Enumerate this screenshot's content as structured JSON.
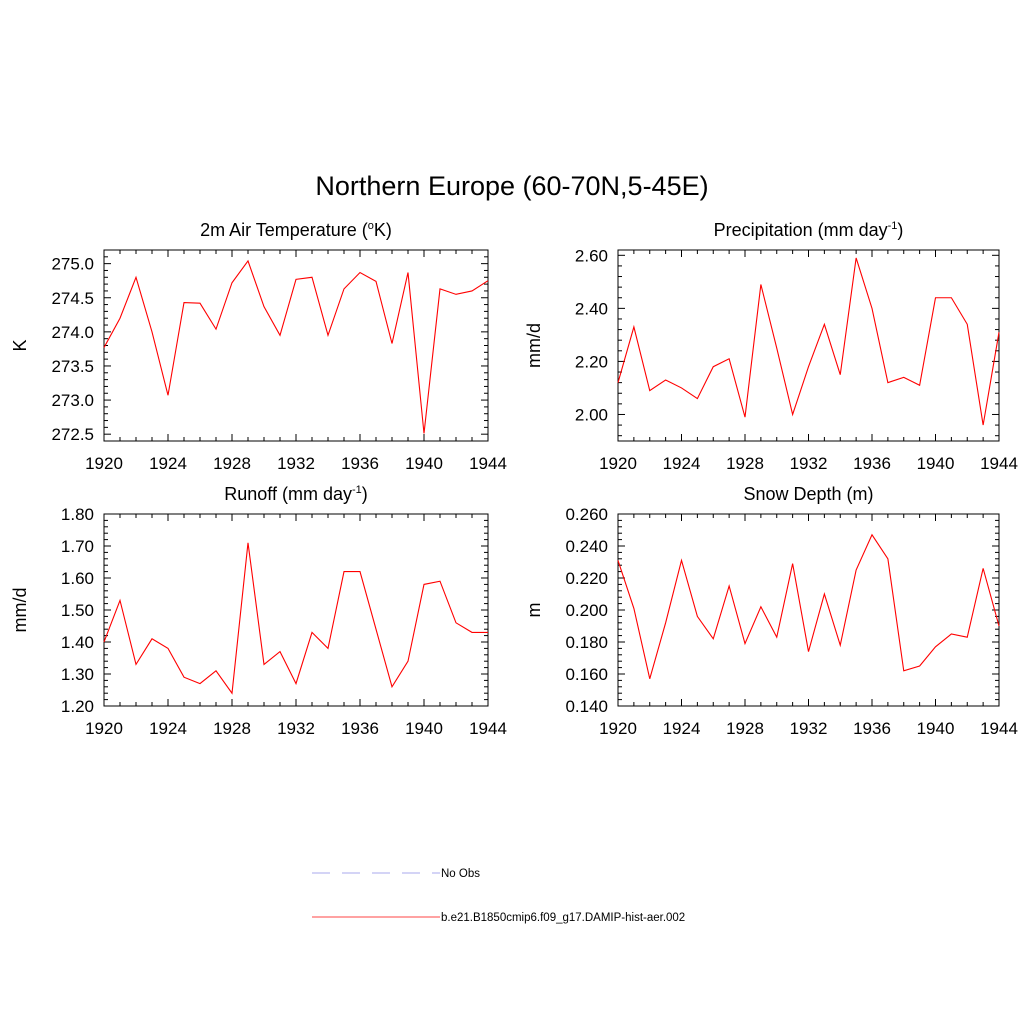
{
  "page": {
    "title": "Northern Europe (60-70N,5-45E)"
  },
  "chart_data": [
    {
      "type": "line",
      "title": "2m Air Temperature (",
      "title_sup": "o",
      "title_after": "K)",
      "ylabel": "K",
      "xlim": [
        1920,
        1944
      ],
      "ylim": [
        272.4,
        275.2
      ],
      "x_ticks": [
        "1920",
        "1924",
        "1928",
        "1932",
        "1936",
        "1940",
        "1944"
      ],
      "y_ticks": [
        "272.5",
        "273.0",
        "273.5",
        "274.0",
        "274.5",
        "275.0"
      ],
      "series": [
        {
          "color": "#ff0000",
          "x": [
            1920,
            1921,
            1922,
            1923,
            1924,
            1925,
            1926,
            1927,
            1928,
            1929,
            1930,
            1931,
            1932,
            1933,
            1934,
            1935,
            1936,
            1937,
            1938,
            1939,
            1940,
            1941,
            1942,
            1943,
            1944
          ],
          "values": [
            273.77,
            274.2,
            274.8,
            274.0,
            273.07,
            274.43,
            274.42,
            274.04,
            274.72,
            275.04,
            274.37,
            273.95,
            274.77,
            274.8,
            273.95,
            274.63,
            274.87,
            274.74,
            273.83,
            274.87,
            272.51,
            274.63,
            274.55,
            274.6,
            274.75
          ]
        }
      ]
    },
    {
      "type": "line",
      "title": "Precipitation (mm day",
      "title_sup": "-1",
      "title_after": ")",
      "ylabel": "mm/d",
      "xlim": [
        1920,
        1944
      ],
      "ylim": [
        1.9,
        2.62
      ],
      "x_ticks": [
        "1920",
        "1924",
        "1928",
        "1932",
        "1936",
        "1940",
        "1944"
      ],
      "y_ticks": [
        "2.00",
        "2.20",
        "2.40",
        "2.60"
      ],
      "series": [
        {
          "color": "#ff0000",
          "x": [
            1920,
            1921,
            1922,
            1923,
            1924,
            1925,
            1926,
            1927,
            1928,
            1929,
            1930,
            1931,
            1932,
            1933,
            1934,
            1935,
            1936,
            1937,
            1938,
            1939,
            1940,
            1941,
            1942,
            1943,
            1944
          ],
          "values": [
            2.12,
            2.33,
            2.09,
            2.13,
            2.1,
            2.06,
            2.18,
            2.21,
            1.99,
            2.49,
            2.25,
            2.0,
            2.18,
            2.34,
            2.15,
            2.59,
            2.4,
            2.12,
            2.14,
            2.11,
            2.44,
            2.44,
            2.34,
            1.96,
            2.31
          ]
        }
      ]
    },
    {
      "type": "line",
      "title": "Runoff (mm day",
      "title_sup": "-1",
      "title_after": ")",
      "ylabel": "mm/d",
      "xlim": [
        1920,
        1944
      ],
      "ylim": [
        1.2,
        1.8
      ],
      "x_ticks": [
        "1920",
        "1924",
        "1928",
        "1932",
        "1936",
        "1940",
        "1944"
      ],
      "y_ticks": [
        "1.20",
        "1.30",
        "1.40",
        "1.50",
        "1.60",
        "1.70",
        "1.80"
      ],
      "series": [
        {
          "color": "#ff0000",
          "x": [
            1920,
            1921,
            1922,
            1923,
            1924,
            1925,
            1926,
            1927,
            1928,
            1929,
            1930,
            1931,
            1932,
            1933,
            1934,
            1935,
            1936,
            1937,
            1938,
            1939,
            1940,
            1941,
            1942,
            1943,
            1944
          ],
          "values": [
            1.4,
            1.53,
            1.33,
            1.41,
            1.38,
            1.29,
            1.27,
            1.31,
            1.24,
            1.71,
            1.33,
            1.37,
            1.27,
            1.43,
            1.38,
            1.62,
            1.62,
            1.44,
            1.26,
            1.34,
            1.58,
            1.59,
            1.46,
            1.43,
            1.43
          ]
        }
      ]
    },
    {
      "type": "line",
      "title": "Snow Depth (m)",
      "title_sup": "",
      "title_after": "",
      "ylabel": "m",
      "xlim": [
        1920,
        1944
      ],
      "ylim": [
        0.14,
        0.26
      ],
      "x_ticks": [
        "1920",
        "1924",
        "1928",
        "1932",
        "1936",
        "1940",
        "1944"
      ],
      "y_ticks": [
        "0.140",
        "0.160",
        "0.180",
        "0.200",
        "0.220",
        "0.240",
        "0.260"
      ],
      "series": [
        {
          "color": "#ff0000",
          "x": [
            1920,
            1921,
            1922,
            1923,
            1924,
            1925,
            1926,
            1927,
            1928,
            1929,
            1930,
            1931,
            1932,
            1933,
            1934,
            1935,
            1936,
            1937,
            1938,
            1939,
            1940,
            1941,
            1942,
            1943,
            1944
          ],
          "values": [
            0.231,
            0.201,
            0.157,
            0.192,
            0.231,
            0.196,
            0.182,
            0.215,
            0.179,
            0.202,
            0.183,
            0.229,
            0.174,
            0.21,
            0.178,
            0.225,
            0.247,
            0.232,
            0.162,
            0.165,
            0.177,
            0.185,
            0.183,
            0.226,
            0.19
          ]
        }
      ]
    }
  ],
  "legend": {
    "items": [
      {
        "label": "No Obs",
        "color": "#aaaaee",
        "style": "dashed"
      },
      {
        "label": "b.e21.B1850cmip6.f09_g17.DAMIP-hist-aer.002",
        "color": "#ff4444",
        "style": "solid"
      }
    ]
  }
}
